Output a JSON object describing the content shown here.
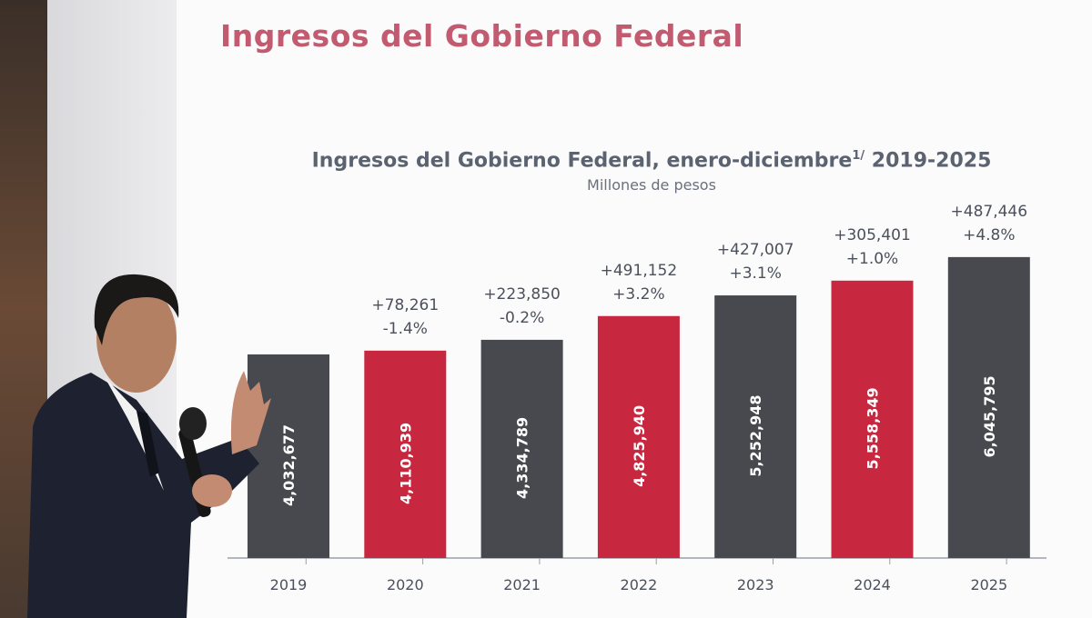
{
  "slide": {
    "title": "Ingresos del Gobierno Federal"
  },
  "chart_data": {
    "type": "bar",
    "title": "Ingresos del Gobierno Federal, enero-diciembre",
    "title_footnote": "1/",
    "title_suffix": "2019-2025",
    "subtitle": "Millones de pesos",
    "categories": [
      "2019",
      "2020",
      "2021",
      "2022",
      "2023",
      "2024",
      "2025"
    ],
    "values": [
      4032677,
      4110939,
      4334789,
      4825940,
      5252948,
      5558349,
      6045795
    ],
    "value_labels": [
      "4,032,677",
      "4,110,939",
      "4,334,789",
      "4,825,940",
      "5,252,948",
      "5,558,349",
      "6,045,795"
    ],
    "change_abs": [
      "",
      "+78,261",
      "+223,850",
      "+491,152",
      "+427,007",
      "+305,401",
      "+487,446"
    ],
    "change_pct": [
      "",
      "-1.4%",
      "-0.2%",
      "+3.2%",
      "+3.1%",
      "+1.0%",
      "+4.8%"
    ],
    "bar_colors": [
      "#47494f",
      "#c8283f",
      "#47494f",
      "#c8283f",
      "#47494f",
      "#c8283f",
      "#47494f"
    ],
    "grid": false,
    "legend": "none"
  },
  "colors": {
    "title": "#c25a70",
    "dark_bar": "#47494f",
    "red_bar": "#c8283f"
  }
}
